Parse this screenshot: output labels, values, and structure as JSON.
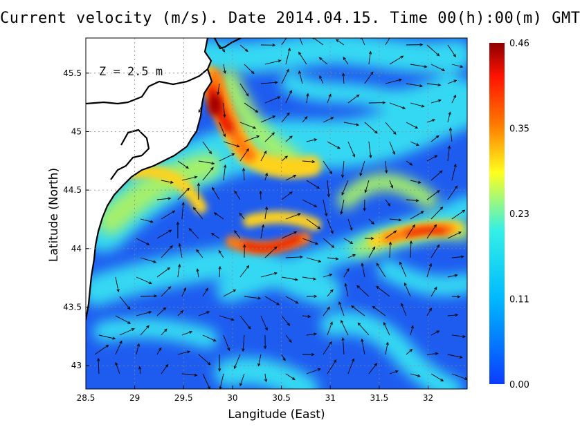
{
  "title": "Current velocity (m/s). Date 2014.04.15. Time 00(h):00(m) GMT",
  "depth_label": "Z = 2.5 m",
  "map": {
    "xlabel": "Langitude (East)",
    "ylabel": "Latitude (North)",
    "lon_range": [
      28.5,
      32.4
    ],
    "lat_range": [
      42.8,
      45.8
    ],
    "lon_ticks": [
      "28.5",
      "29",
      "29.5",
      "30",
      "30.5",
      "31",
      "31.5",
      "32"
    ],
    "lat_ticks": [
      "43",
      "43.5",
      "44",
      "44.5",
      "45",
      "45.5"
    ],
    "grid": true
  },
  "colorbar": {
    "ticks": [
      "0.46",
      "0.35",
      "0.23",
      "0.11",
      "0.00"
    ],
    "range": [
      0.0,
      0.46
    ],
    "colors": [
      "#0a3cff",
      "#00b8ff",
      "#33f0e6",
      "#ffff1e",
      "#ff7a00",
      "#ff1400",
      "#8c0000"
    ]
  },
  "colors": {
    "land": "#ffffff",
    "coast": "#000000",
    "low_speed": "#1e5cf0"
  }
}
